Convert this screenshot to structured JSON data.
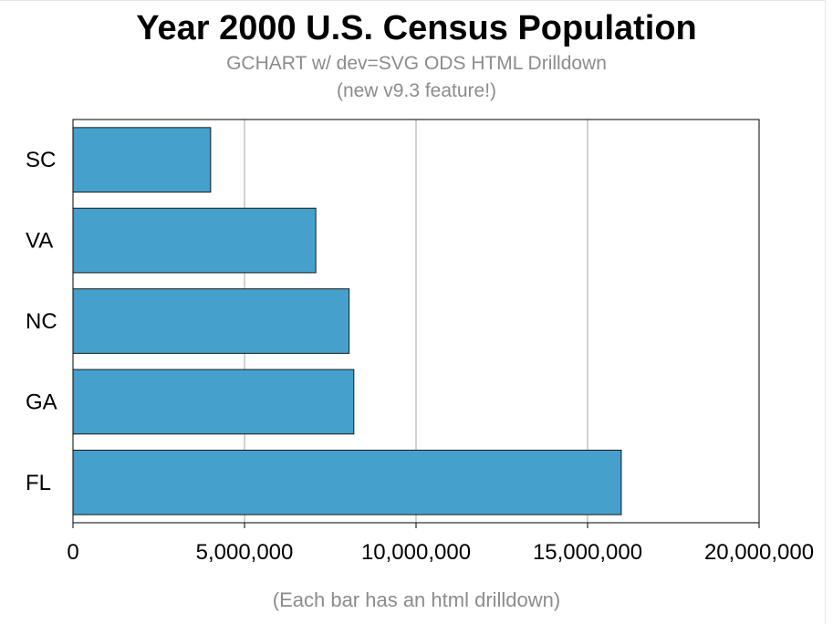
{
  "chart_data": {
    "type": "bar",
    "orientation": "horizontal",
    "title": "Year 2000 U.S. Census Population",
    "subtitle": [
      "GCHART w/ dev=SVG ODS HTML Drilldown",
      "(new v9.3 feature!)"
    ],
    "footnote": "(Each bar has an html drilldown)",
    "categories": [
      "SC",
      "VA",
      "NC",
      "GA",
      "FL"
    ],
    "values": [
      4012012,
      7078515,
      8049313,
      8186453,
      15982378
    ],
    "xlim": [
      0,
      20000000
    ],
    "ticks": [
      0,
      5000000,
      10000000,
      15000000,
      20000000
    ],
    "tick_labels": [
      "0",
      "5,000,000",
      "10,000,000",
      "15,000,000",
      "20,000,000"
    ],
    "grid": true,
    "colors": {
      "bar": "#46a0cc",
      "bar_outline": "#1a1a1a",
      "grid": "#a6a6a6",
      "subtitle": "#8c8c8c"
    }
  }
}
